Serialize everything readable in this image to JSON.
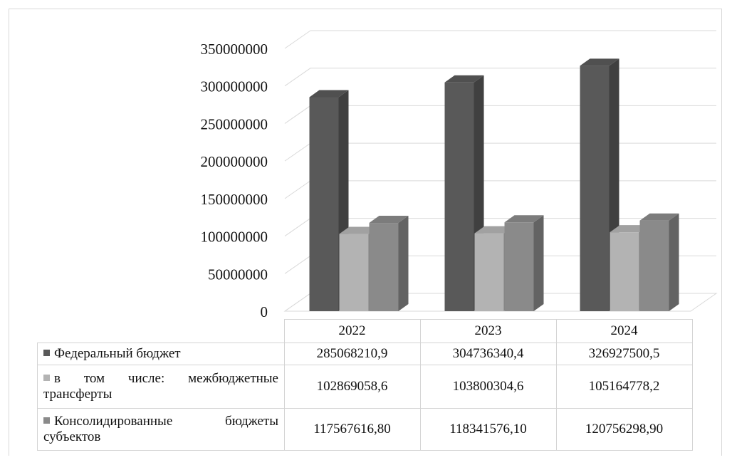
{
  "chart_data": {
    "type": "bar",
    "categories": [
      "2022",
      "2023",
      "2024"
    ],
    "series": [
      {
        "name": "Федеральный бюджет",
        "values": [
          285068210.9,
          304736340.4,
          326927500.5
        ],
        "labels": [
          "285068210,9",
          "304736340,4",
          "326927500,5"
        ],
        "color": "#595959"
      },
      {
        "name": "в том числе: межбюджетные трансферты",
        "values": [
          102869058.6,
          103800304.6,
          105164778.2
        ],
        "labels": [
          "102869058,6",
          "103800304,6",
          "105164778,2"
        ],
        "color": "#b3b3b3"
      },
      {
        "name": "Консолидированные бюджеты субъектов",
        "values": [
          117567616.8,
          118341576.1,
          120756298.9
        ],
        "labels": [
          "117567616,80",
          "118341576,10",
          "120756298,90"
        ],
        "color": "#8a8a8a"
      }
    ],
    "yticks": [
      "0",
      "50000000",
      "100000000",
      "150000000",
      "200000000",
      "250000000",
      "300000000",
      "350000000"
    ],
    "ylim": [
      0,
      350000000
    ],
    "grid": true,
    "legend": "data-table",
    "style": "3d-clustered-column"
  }
}
